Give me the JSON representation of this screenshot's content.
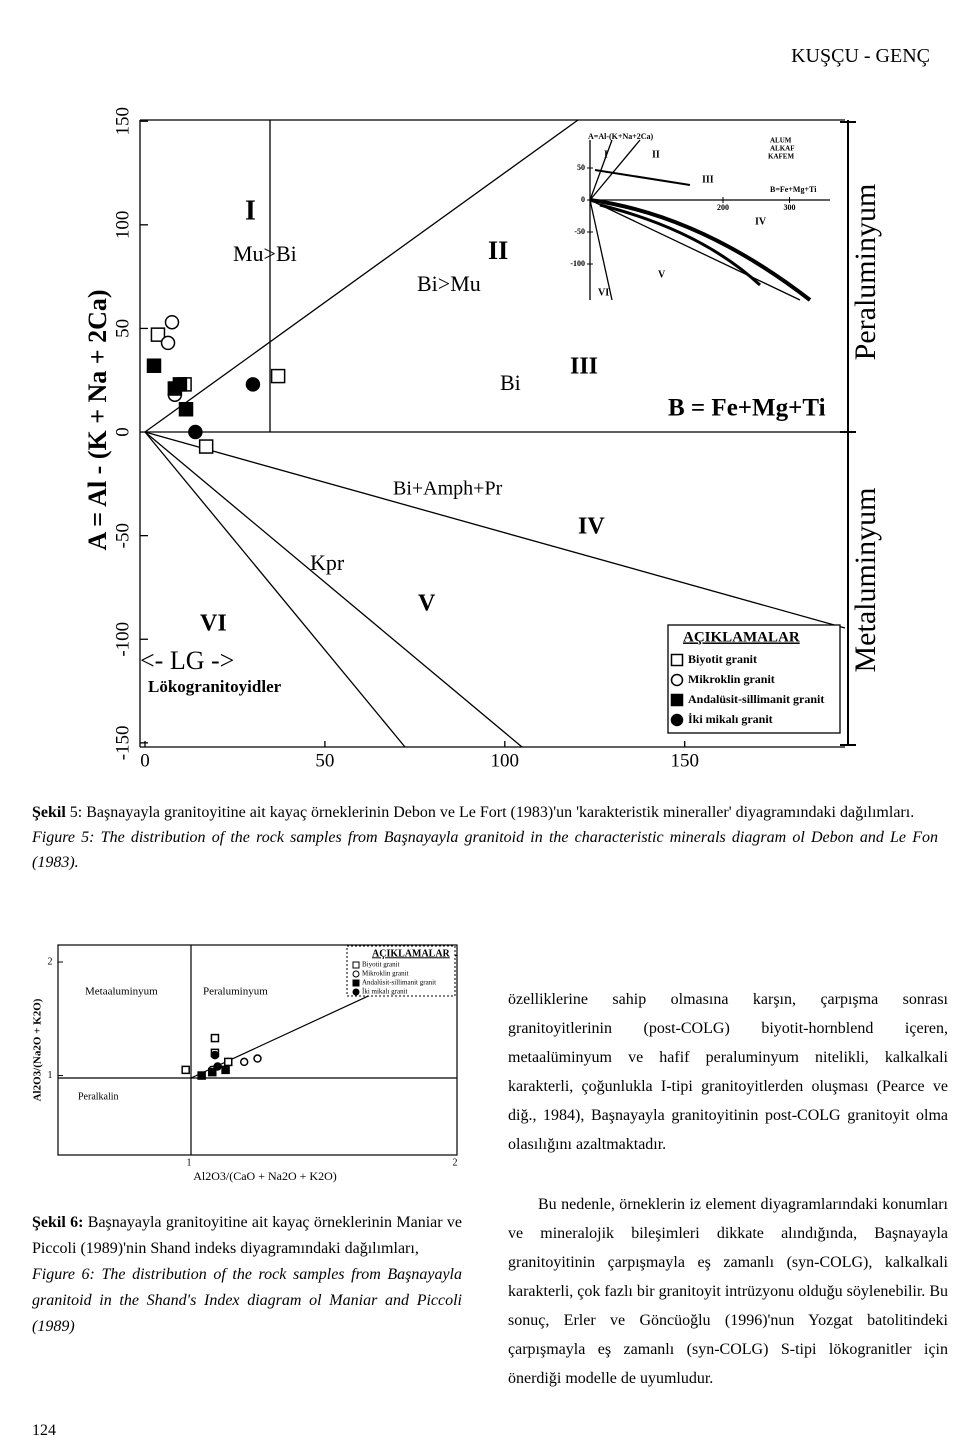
{
  "header": {
    "running_title": "KUŞÇU - GENÇ"
  },
  "chart_data": [
    {
      "type": "scatter",
      "ylabel": "A = Al - (K + Na + 2Ca)",
      "xlim": [
        0,
        194
      ],
      "ylim": [
        -152,
        153
      ],
      "xticks": [
        0,
        50,
        100,
        150
      ],
      "yticks": [
        -150,
        -100,
        -50,
        0,
        50,
        100,
        150
      ],
      "annotations": [
        "I",
        "Mu>Bi",
        "II",
        "Bi>Mu",
        "Bi",
        "III",
        "B = Fe+Mg+Ti",
        "Bi+Amph+Pr",
        "IV",
        "Kpr",
        "V",
        "VI",
        "<- LG ->",
        "Lökogranitoyidler",
        "Peraluminyum",
        "Metaluminyum"
      ],
      "legend_title": "AÇIKLAMALAR",
      "legend": "lower right",
      "series": [
        {
          "name": "Biyotit granit",
          "marker": "square-open",
          "color": "#000000",
          "x": [
            3.6,
            11,
            37,
            17
          ],
          "values": [
            47,
            23,
            27,
            -7
          ]
        },
        {
          "name": "Mikroklin granit",
          "marker": "circle-open",
          "color": "#000000",
          "x": [
            7.5,
            6.4,
            8.3
          ],
          "values": [
            53,
            43,
            18
          ]
        },
        {
          "name": "Andalüsit-sillimanit granit",
          "marker": "square-filled",
          "color": "#000000",
          "x": [
            2.5,
            9.7,
            8.3,
            11.4
          ],
          "values": [
            32,
            23,
            21,
            11
          ]
        },
        {
          "name": "İki mikalı granit",
          "marker": "circle-filled",
          "color": "#000000",
          "x": [
            30,
            14
          ],
          "values": [
            23,
            0
          ]
        }
      ],
      "inset": {
        "ylabel": "A=Al-(K+Na+2Ca)",
        "xlabel": "B=Fe+Mg+Ti",
        "xticks": [
          200,
          300
        ],
        "yticks": [
          50,
          0,
          -50,
          -100
        ],
        "labels": [
          "I",
          "II",
          "III",
          "IV",
          "V",
          "VI",
          "ALUM",
          "ALKAF",
          "KAFEM"
        ]
      }
    },
    {
      "type": "scatter",
      "xlabel": "Al2O3/(CaO + Na2O + K2O)",
      "ylabel": "Al2O3/(Na2O + K2O)",
      "xlim": [
        0.5,
        2.0
      ],
      "ylim": [
        0.3,
        2.15
      ],
      "xticks": [
        1,
        2
      ],
      "yticks": [
        1,
        2
      ],
      "annotations": [
        "Metaaluminyum",
        "Peraluminyum",
        "Peralkalin"
      ],
      "legend_title": "AÇIKLAMALAR",
      "legend": "upper right",
      "series": [
        {
          "name": "Biyotit granit",
          "marker": "square-open",
          "color": "#000000",
          "x": [
            1.09,
            0.98,
            1.14,
            1.09
          ],
          "values": [
            1.33,
            1.05,
            1.12,
            1.2
          ]
        },
        {
          "name": "Mikroklin granit",
          "marker": "circle-open",
          "color": "#000000",
          "x": [
            1.08,
            1.2,
            1.25
          ],
          "values": [
            1.05,
            1.12,
            1.15
          ]
        },
        {
          "name": "Andalüsit-sillimanit granit",
          "marker": "square-filled",
          "color": "#000000",
          "x": [
            1.04,
            1.08,
            1.13
          ],
          "values": [
            1.0,
            1.03,
            1.05
          ]
        },
        {
          "name": "İki mikalı granit",
          "marker": "circle-filled",
          "color": "#000000",
          "x": [
            1.09,
            1.1
          ],
          "values": [
            1.18,
            1.08
          ]
        }
      ]
    }
  ],
  "captions": {
    "figure5": {
      "label": "Şekil",
      "number": "5:",
      "text": "Başnayayla granitoyitine ait kayaç örneklerinin Debon ve Le Fort (1983)'un 'karakteristik mineraller' diyagramındaki dağılımları.",
      "english": "Figure 5: The distribution of the rock samples from Başnayayla granitoid in the characteristic minerals diagram ol Debon and Le Fon (1983)."
    },
    "figure6": {
      "label": "Şekil 6:",
      "text": "Başnayayla granitoyitine ait kayaç örneklerinin Maniar ve Piccoli (1989)'nin Shand indeks diyagramındaki dağılımları,",
      "english": "Figure 6: The distribution of the rock samples from Başnayayla granitoid in the Shand's Index diagram ol Maniar and Piccoli (1989)"
    }
  },
  "body": {
    "paragraphs": [
      "özelliklerine sahip olmasına karşın, çarpışma sonrası granitoyitlerinin (post-COLG) biyotit-hornblend içeren, metaalüminyum ve hafif peraluminyum nitelikli, kalkalkali karakterli, çoğunlukla I-tipi granitoyitlerden oluşması (Pearce ve diğ., 1984), Başnayayla granitoyitinin post-COLG granitoyit olma olasılığını azaltmaktadır.",
      "Bu nedenle, örneklerin iz element diyagramlarındaki konumları ve mineralojik bileşimleri dikkate alındığında, Başnayayla granitoyitinin çarpışmayla eş zamanlı (syn-COLG), kalkalkali karakterli, çok fazlı bir granitoyit intrüzyonu olduğu söylenebilir. Bu sonuç, Erler ve Göncüoğlu (1996)'nun Yozgat batolitindeki çarpışmayla eş zamanlı (syn-COLG) S-tipi lökogranitler için önerdiği modelle de uyumludur."
    ]
  },
  "footer": {
    "page_number": "124"
  }
}
